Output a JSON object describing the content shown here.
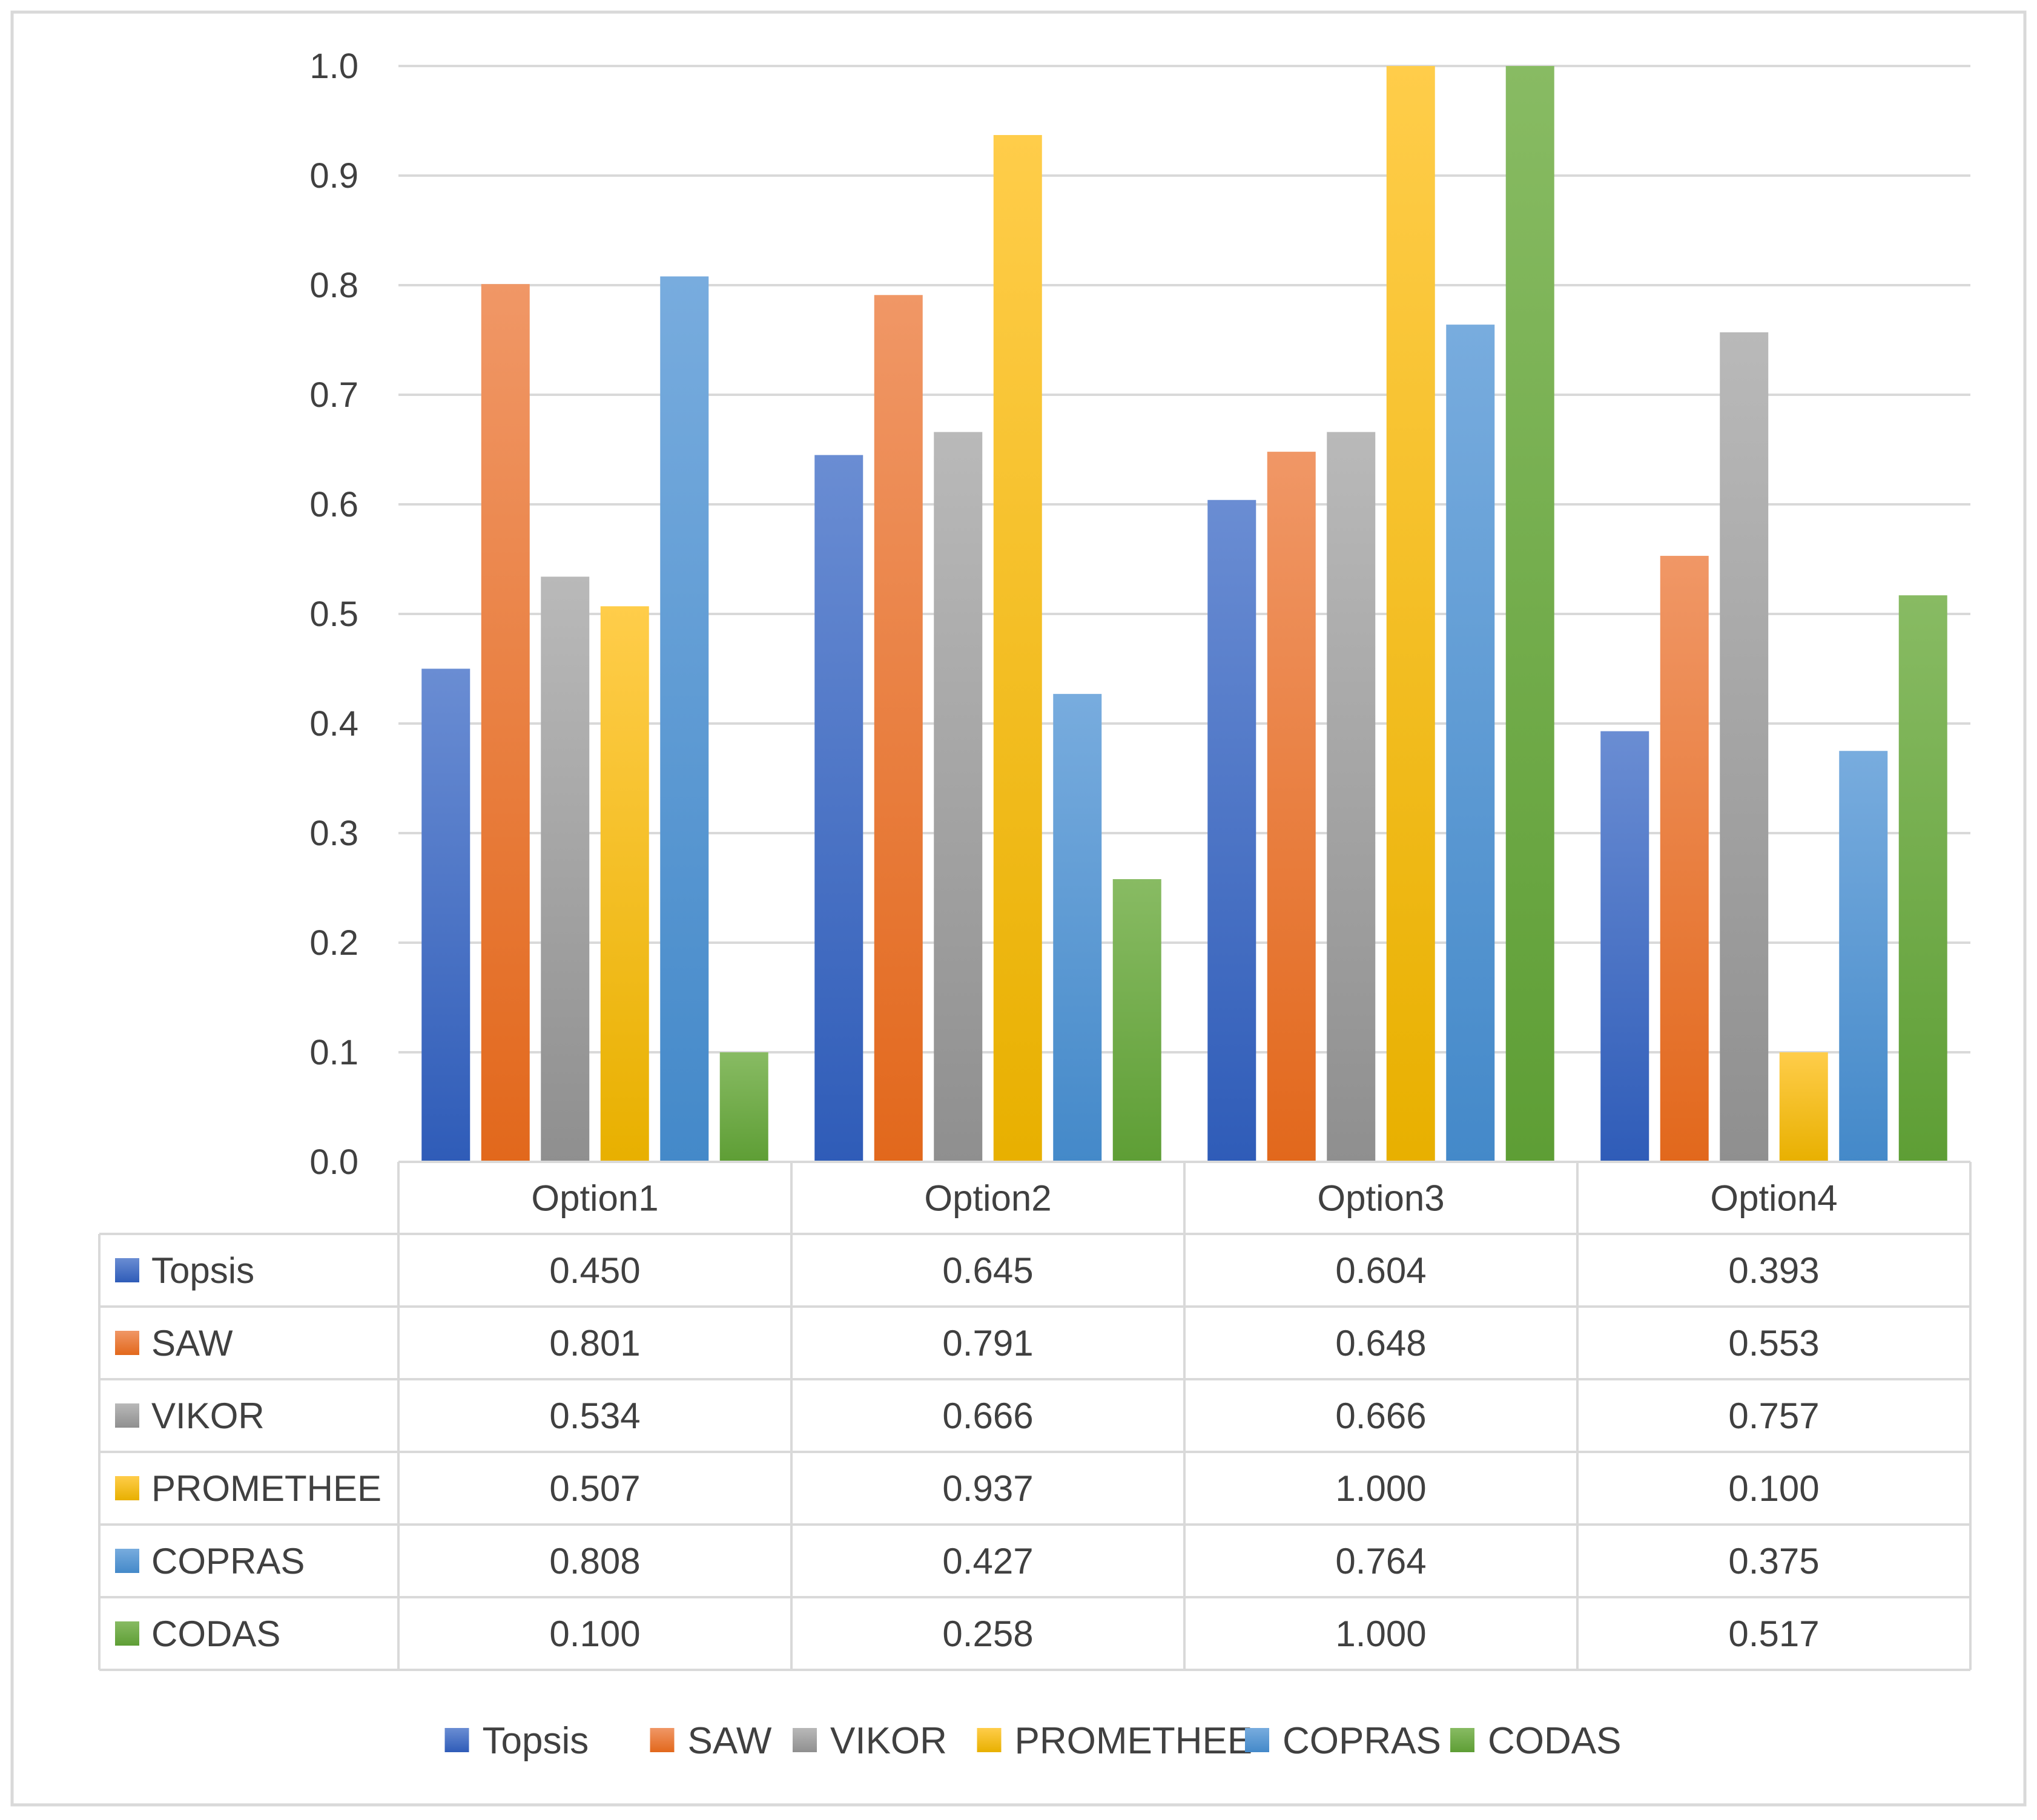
{
  "chart_data": {
    "type": "bar",
    "title": "",
    "xlabel": "",
    "ylabel": "",
    "ylim": [
      0,
      1.0
    ],
    "yticks": [
      "0.0",
      "0.1",
      "0.2",
      "0.3",
      "0.4",
      "0.5",
      "0.6",
      "0.7",
      "0.8",
      "0.9",
      "1.0"
    ],
    "grid": true,
    "legend_position": "bottom",
    "categories": [
      "Option1",
      "Option2",
      "Option3",
      "Option4"
    ],
    "series": [
      {
        "name": "Topsis",
        "values": [
          0.45,
          0.645,
          0.604,
          0.393
        ],
        "labels": [
          "0.450",
          "0.645",
          "0.604",
          "0.393"
        ],
        "color": "#4472C4",
        "color_top": "#6a8dd3",
        "color_bottom": "#2f5cb8"
      },
      {
        "name": "SAW",
        "values": [
          0.801,
          0.791,
          0.648,
          0.553
        ],
        "labels": [
          "0.801",
          "0.791",
          "0.648",
          "0.553"
        ],
        "color": "#ED7D31",
        "color_top": "#f09766",
        "color_bottom": "#e2681c"
      },
      {
        "name": "VIKOR",
        "values": [
          0.534,
          0.666,
          0.666,
          0.757
        ],
        "labels": [
          "0.534",
          "0.666",
          "0.666",
          "0.757"
        ],
        "color": "#A5A5A5",
        "color_top": "#b9b9b9",
        "color_bottom": "#8f8f8f"
      },
      {
        "name": "PROMETHEE",
        "values": [
          0.507,
          0.937,
          1.0,
          0.1
        ],
        "labels": [
          "0.507",
          "0.937",
          "1.000",
          "0.100"
        ],
        "color": "#FFC000",
        "color_top": "#ffcd4a",
        "color_bottom": "#e8b000"
      },
      {
        "name": "COPRAS",
        "values": [
          0.808,
          0.427,
          0.764,
          0.375
        ],
        "labels": [
          "0.808",
          "0.427",
          "0.764",
          "0.375"
        ],
        "color": "#5B9BD5",
        "color_top": "#78acde",
        "color_bottom": "#4489c9"
      },
      {
        "name": "CODAS",
        "values": [
          0.1,
          0.258,
          1.0,
          0.517
        ],
        "labels": [
          "0.100",
          "0.258",
          "1.000",
          "0.517"
        ],
        "color": "#70AD47",
        "color_top": "#88bb63",
        "color_bottom": "#5e9e35"
      }
    ]
  }
}
